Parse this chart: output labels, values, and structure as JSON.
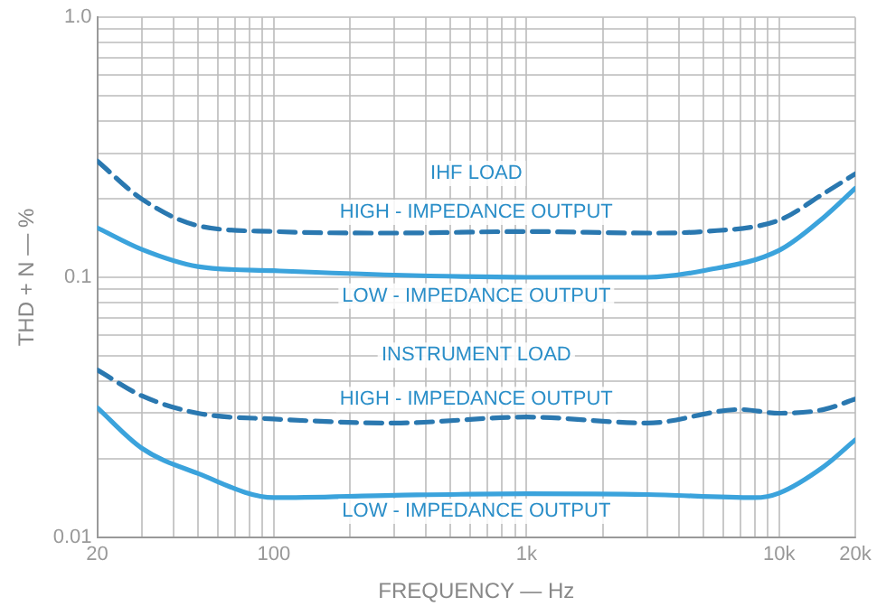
{
  "chart_data": {
    "type": "line",
    "xlabel": "FREQUENCY — Hz",
    "ylabel": "THD + N — %",
    "log": "xy",
    "grid": true,
    "legend": false,
    "marker": "none",
    "xlim": [
      20,
      20000
    ],
    "ylim": [
      0.01,
      1
    ],
    "xticks": [
      {
        "value": 20,
        "label": "20"
      },
      {
        "value": 30,
        "label": null
      },
      {
        "value": 40,
        "label": null
      },
      {
        "value": 50,
        "label": null
      },
      {
        "value": 60,
        "label": null
      },
      {
        "value": 70,
        "label": null
      },
      {
        "value": 80,
        "label": null
      },
      {
        "value": 90,
        "label": null
      },
      {
        "value": 100,
        "label": "100"
      },
      {
        "value": 200,
        "label": null
      },
      {
        "value": 300,
        "label": null
      },
      {
        "value": 400,
        "label": null
      },
      {
        "value": 500,
        "label": null
      },
      {
        "value": 600,
        "label": null
      },
      {
        "value": 700,
        "label": null
      },
      {
        "value": 800,
        "label": null
      },
      {
        "value": 900,
        "label": null
      },
      {
        "value": 1000,
        "label": "1k"
      },
      {
        "value": 2000,
        "label": null
      },
      {
        "value": 3000,
        "label": null
      },
      {
        "value": 4000,
        "label": null
      },
      {
        "value": 5000,
        "label": null
      },
      {
        "value": 6000,
        "label": null
      },
      {
        "value": 7000,
        "label": null
      },
      {
        "value": 8000,
        "label": null
      },
      {
        "value": 9000,
        "label": null
      },
      {
        "value": 10000,
        "label": "10k"
      },
      {
        "value": 20000,
        "label": "20k"
      }
    ],
    "yticks": [
      {
        "value": 0.01,
        "label": "0.01"
      },
      {
        "value": 0.02,
        "label": null
      },
      {
        "value": 0.03,
        "label": null
      },
      {
        "value": 0.04,
        "label": null
      },
      {
        "value": 0.05,
        "label": null
      },
      {
        "value": 0.06,
        "label": null
      },
      {
        "value": 0.07,
        "label": null
      },
      {
        "value": 0.08,
        "label": null
      },
      {
        "value": 0.09,
        "label": null
      },
      {
        "value": 0.1,
        "label": "0.1"
      },
      {
        "value": 0.2,
        "label": null
      },
      {
        "value": 0.3,
        "label": null
      },
      {
        "value": 0.4,
        "label": null
      },
      {
        "value": 0.5,
        "label": null
      },
      {
        "value": 0.6,
        "label": null
      },
      {
        "value": 0.7,
        "label": null
      },
      {
        "value": 0.8,
        "label": null
      },
      {
        "value": 0.9,
        "label": null
      },
      {
        "value": 1,
        "label": "1.0"
      }
    ],
    "series": [
      {
        "color": "#2a78b0",
        "line_style": "dashed",
        "x": [
          20,
          30,
          50,
          100,
          300,
          1000,
          3000,
          5000,
          10000,
          15000,
          20000
        ],
        "values": [
          0.28,
          0.2,
          0.158,
          0.15,
          0.148,
          0.15,
          0.148,
          0.15,
          0.166,
          0.21,
          0.25
        ]
      },
      {
        "color": "#3ba3dc",
        "line_style": "solid",
        "x": [
          20,
          30,
          50,
          100,
          300,
          1000,
          3000,
          5000,
          10000,
          15000,
          20000
        ],
        "values": [
          0.155,
          0.128,
          0.11,
          0.106,
          0.102,
          0.1,
          0.1,
          0.106,
          0.127,
          0.17,
          0.22
        ]
      },
      {
        "color": "#2a78b0",
        "line_style": "dashed",
        "x": [
          20,
          30,
          50,
          100,
          300,
          1000,
          3000,
          7000,
          10000,
          15000,
          20000
        ],
        "values": [
          0.044,
          0.035,
          0.03,
          0.0285,
          0.0275,
          0.029,
          0.0275,
          0.031,
          0.03,
          0.031,
          0.034
        ]
      },
      {
        "color": "#3ba3dc",
        "line_style": "solid",
        "x": [
          20,
          30,
          50,
          100,
          300,
          1000,
          3000,
          8000,
          10000,
          15000,
          20000
        ],
        "values": [
          0.0315,
          0.022,
          0.0176,
          0.0142,
          0.0145,
          0.0147,
          0.0146,
          0.0142,
          0.0148,
          0.0187,
          0.0237
        ]
      }
    ],
    "annotations": [
      "IHF LOAD",
      "HIGH - IMPEDANCE OUTPUT",
      "LOW - IMPEDANCE OUTPUT",
      "INSTRUMENT LOAD",
      "HIGH - IMPEDANCE OUTPUT",
      "LOW - IMPEDANCE OUTPUT"
    ]
  }
}
